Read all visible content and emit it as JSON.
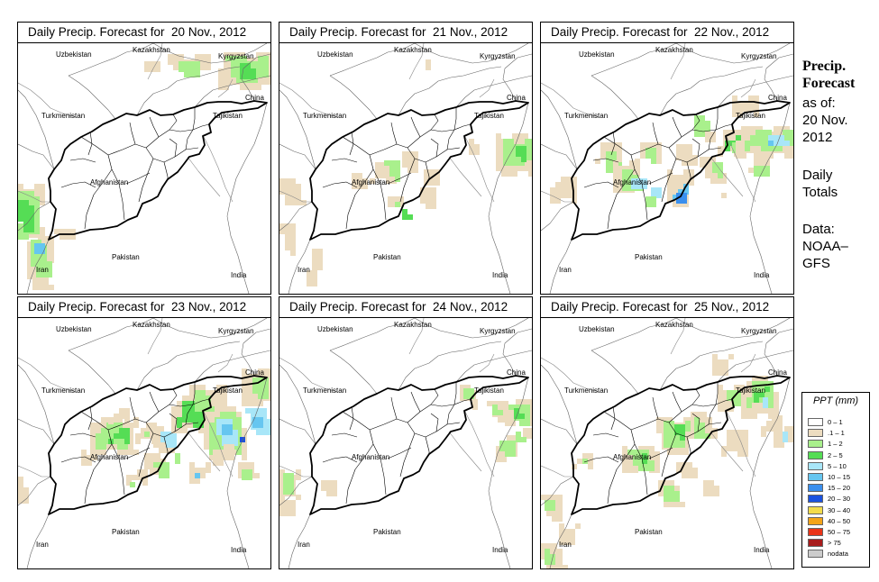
{
  "panels": [
    {
      "title": "Daily Precip. Forecast for  20 Nov., 2012"
    },
    {
      "title": "Daily Precip. Forecast for  21 Nov., 2012"
    },
    {
      "title": "Daily Precip. Forecast for  22 Nov., 2012"
    },
    {
      "title": "Daily Precip. Forecast for  23 Nov., 2012"
    },
    {
      "title": "Daily Precip. Forecast for  24 Nov., 2012"
    },
    {
      "title": "Daily Precip. Forecast for  25 Nov., 2012"
    }
  ],
  "map_labels": {
    "uzbekistan": "Uzbekistan",
    "kazakhstan": "Kazakhstan",
    "kyrgyzstan": "Kyrgyzstan",
    "china": "China",
    "turkmenistan": "Turkmenistan",
    "tajikistan": "Tajikistan",
    "afghanistan": "Afghanistan",
    "iran": "Iran",
    "pakistan": "Pakistan",
    "india": "India"
  },
  "sidebar": {
    "title_line1": "Precip.",
    "title_line2": "Forecast",
    "asof_line1": "as of:",
    "asof_line2": "20 Nov.",
    "asof_line3": "2012",
    "daily_line1": "Daily",
    "daily_line2": "Totals",
    "data_line1": "Data:",
    "data_line2": "NOAA–",
    "data_line3": "GFS"
  },
  "legend": {
    "title": "PPT (mm)",
    "items": [
      {
        "label": "0 – 1",
        "color": "#ffffff"
      },
      {
        "label": ".1 – 1",
        "color": "#ecdcc0"
      },
      {
        "label": "1 – 2",
        "color": "#a9f08c"
      },
      {
        "label": "2 – 5",
        "color": "#55dd55"
      },
      {
        "label": "5 – 10",
        "color": "#a8e6f8"
      },
      {
        "label": "10 – 15",
        "color": "#66c6f0"
      },
      {
        "label": "15 – 20",
        "color": "#3a8fee"
      },
      {
        "label": "20 – 30",
        "color": "#1a52e0"
      },
      {
        "label": "30 – 40",
        "color": "#f3dc4c"
      },
      {
        "label": "40 – 50",
        "color": "#f4a418"
      },
      {
        "label": "50 – 75",
        "color": "#ea3418"
      },
      {
        "label": "> 75",
        "color": "#a81c1c"
      },
      {
        "label": "nodata",
        "color": "#cccccc"
      }
    ]
  }
}
